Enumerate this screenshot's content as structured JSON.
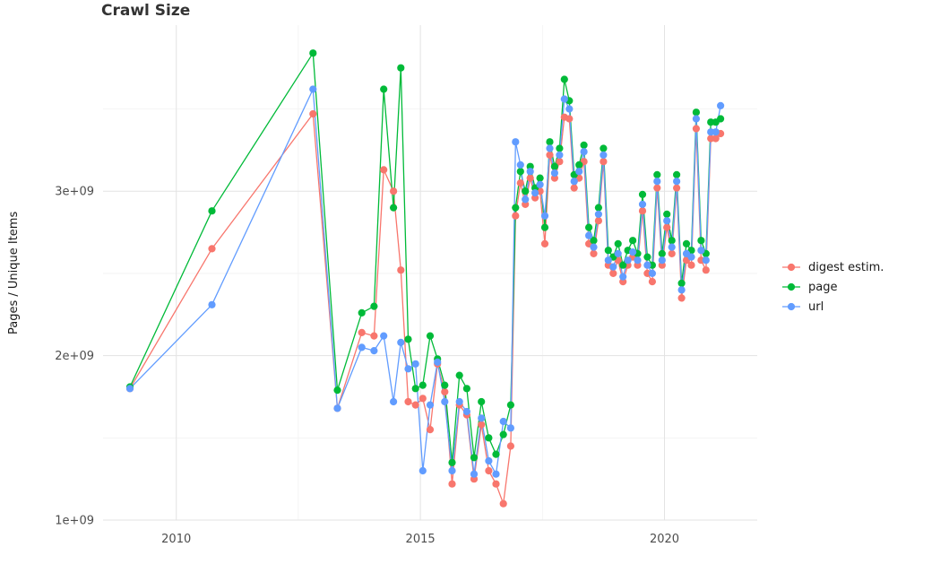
{
  "chart_data": {
    "type": "line",
    "title": "Crawl Size",
    "xlabel": "",
    "ylabel": "Pages / Unique Items",
    "legend_position": "right",
    "grid": "major+minor",
    "panel_background": "#ffffff",
    "grid_major_color": "#e3e3e3",
    "grid_minor_color": "#f2f2f2",
    "xlim": [
      2008.5,
      2021.9
    ],
    "ylim": [
      1000000000.0,
      4010000000.0
    ],
    "x_ticks": [
      {
        "value": 2010,
        "label": "2010"
      },
      {
        "value": 2015,
        "label": "2015"
      },
      {
        "value": 2020,
        "label": "2020"
      }
    ],
    "y_ticks": [
      {
        "value": 1000000000.0,
        "label": "1e+09"
      },
      {
        "value": 2000000000.0,
        "label": "2e+09"
      },
      {
        "value": 3000000000.0,
        "label": "3e+09"
      }
    ],
    "x_minor": [
      2012.5,
      2017.5
    ],
    "y_minor": [
      1500000000.0,
      2500000000.0,
      3500000000.0
    ],
    "x": [
      2009.05,
      2010.73,
      2012.8,
      2013.3,
      2013.8,
      2014.05,
      2014.25,
      2014.45,
      2014.6,
      2014.75,
      2014.9,
      2015.05,
      2015.2,
      2015.35,
      2015.5,
      2015.65,
      2015.8,
      2015.95,
      2016.1,
      2016.25,
      2016.4,
      2016.55,
      2016.7,
      2016.85,
      2016.95,
      2017.05,
      2017.15,
      2017.25,
      2017.35,
      2017.45,
      2017.55,
      2017.65,
      2017.75,
      2017.85,
      2017.95,
      2018.05,
      2018.15,
      2018.25,
      2018.35,
      2018.45,
      2018.55,
      2018.65,
      2018.75,
      2018.85,
      2018.95,
      2019.05,
      2019.15,
      2019.25,
      2019.35,
      2019.45,
      2019.55,
      2019.65,
      2019.75,
      2019.85,
      2019.95,
      2020.05,
      2020.15,
      2020.25,
      2020.35,
      2020.45,
      2020.55,
      2020.65,
      2020.75,
      2020.85,
      2020.95,
      2021.05,
      2021.15
    ],
    "series": [
      {
        "name": "digest estim.",
        "color": "#F8766D",
        "values": [
          1800000000.0,
          2650000000.0,
          3470000000.0,
          1680000000.0,
          2140000000.0,
          2120000000.0,
          3130000000.0,
          3000000000.0,
          2520000000.0,
          1720000000.0,
          1700000000.0,
          1740000000.0,
          1550000000.0,
          1950000000.0,
          1780000000.0,
          1220000000.0,
          1700000000.0,
          1640000000.0,
          1250000000.0,
          1580000000.0,
          1300000000.0,
          1220000000.0,
          1100000000.0,
          1450000000.0,
          2850000000.0,
          3050000000.0,
          2920000000.0,
          3080000000.0,
          2960000000.0,
          3000000000.0,
          2680000000.0,
          3220000000.0,
          3080000000.0,
          3180000000.0,
          3450000000.0,
          3440000000.0,
          3020000000.0,
          3080000000.0,
          3180000000.0,
          2680000000.0,
          2620000000.0,
          2820000000.0,
          3180000000.0,
          2550000000.0,
          2500000000.0,
          2580000000.0,
          2450000000.0,
          2550000000.0,
          2600000000.0,
          2550000000.0,
          2880000000.0,
          2500000000.0,
          2450000000.0,
          3020000000.0,
          2550000000.0,
          2780000000.0,
          2620000000.0,
          3020000000.0,
          2350000000.0,
          2580000000.0,
          2550000000.0,
          3380000000.0,
          2580000000.0,
          2520000000.0,
          3320000000.0,
          3320000000.0,
          3350000000.0
        ]
      },
      {
        "name": "page",
        "color": "#00BA38",
        "values": [
          1810000000.0,
          2880000000.0,
          3840000000.0,
          1790000000.0,
          2260000000.0,
          2300000000.0,
          3620000000.0,
          2900000000.0,
          3750000000.0,
          2100000000.0,
          1800000000.0,
          1820000000.0,
          2120000000.0,
          1980000000.0,
          1820000000.0,
          1350000000.0,
          1880000000.0,
          1800000000.0,
          1380000000.0,
          1720000000.0,
          1500000000.0,
          1400000000.0,
          1520000000.0,
          1700000000.0,
          2900000000.0,
          3120000000.0,
          3000000000.0,
          3150000000.0,
          3020000000.0,
          3080000000.0,
          2780000000.0,
          3300000000.0,
          3150000000.0,
          3260000000.0,
          3680000000.0,
          3550000000.0,
          3100000000.0,
          3160000000.0,
          3280000000.0,
          2780000000.0,
          2700000000.0,
          2900000000.0,
          3260000000.0,
          2640000000.0,
          2600000000.0,
          2680000000.0,
          2550000000.0,
          2640000000.0,
          2700000000.0,
          2620000000.0,
          2980000000.0,
          2600000000.0,
          2550000000.0,
          3100000000.0,
          2620000000.0,
          2860000000.0,
          2700000000.0,
          3100000000.0,
          2440000000.0,
          2680000000.0,
          2640000000.0,
          3480000000.0,
          2700000000.0,
          2620000000.0,
          3420000000.0,
          3420000000.0,
          3440000000.0
        ]
      },
      {
        "name": "url",
        "color": "#619CFF",
        "values": [
          1800000000.0,
          2310000000.0,
          3620000000.0,
          1680000000.0,
          2050000000.0,
          2030000000.0,
          2120000000.0,
          1720000000.0,
          2080000000.0,
          1920000000.0,
          1950000000.0,
          1300000000.0,
          1700000000.0,
          1960000000.0,
          1720000000.0,
          1300000000.0,
          1720000000.0,
          1660000000.0,
          1280000000.0,
          1620000000.0,
          1360000000.0,
          1280000000.0,
          1600000000.0,
          1560000000.0,
          3300000000.0,
          3160000000.0,
          2950000000.0,
          3120000000.0,
          2990000000.0,
          3040000000.0,
          2850000000.0,
          3260000000.0,
          3110000000.0,
          3220000000.0,
          3560000000.0,
          3500000000.0,
          3060000000.0,
          3120000000.0,
          3240000000.0,
          2730000000.0,
          2660000000.0,
          2860000000.0,
          3220000000.0,
          2580000000.0,
          2540000000.0,
          2620000000.0,
          2480000000.0,
          2580000000.0,
          2630000000.0,
          2580000000.0,
          2920000000.0,
          2550000000.0,
          2500000000.0,
          3060000000.0,
          2580000000.0,
          2820000000.0,
          2660000000.0,
          3060000000.0,
          2400000000.0,
          2620000000.0,
          2600000000.0,
          3440000000.0,
          2640000000.0,
          2580000000.0,
          3360000000.0,
          3360000000.0,
          3520000000.0
        ]
      }
    ]
  }
}
